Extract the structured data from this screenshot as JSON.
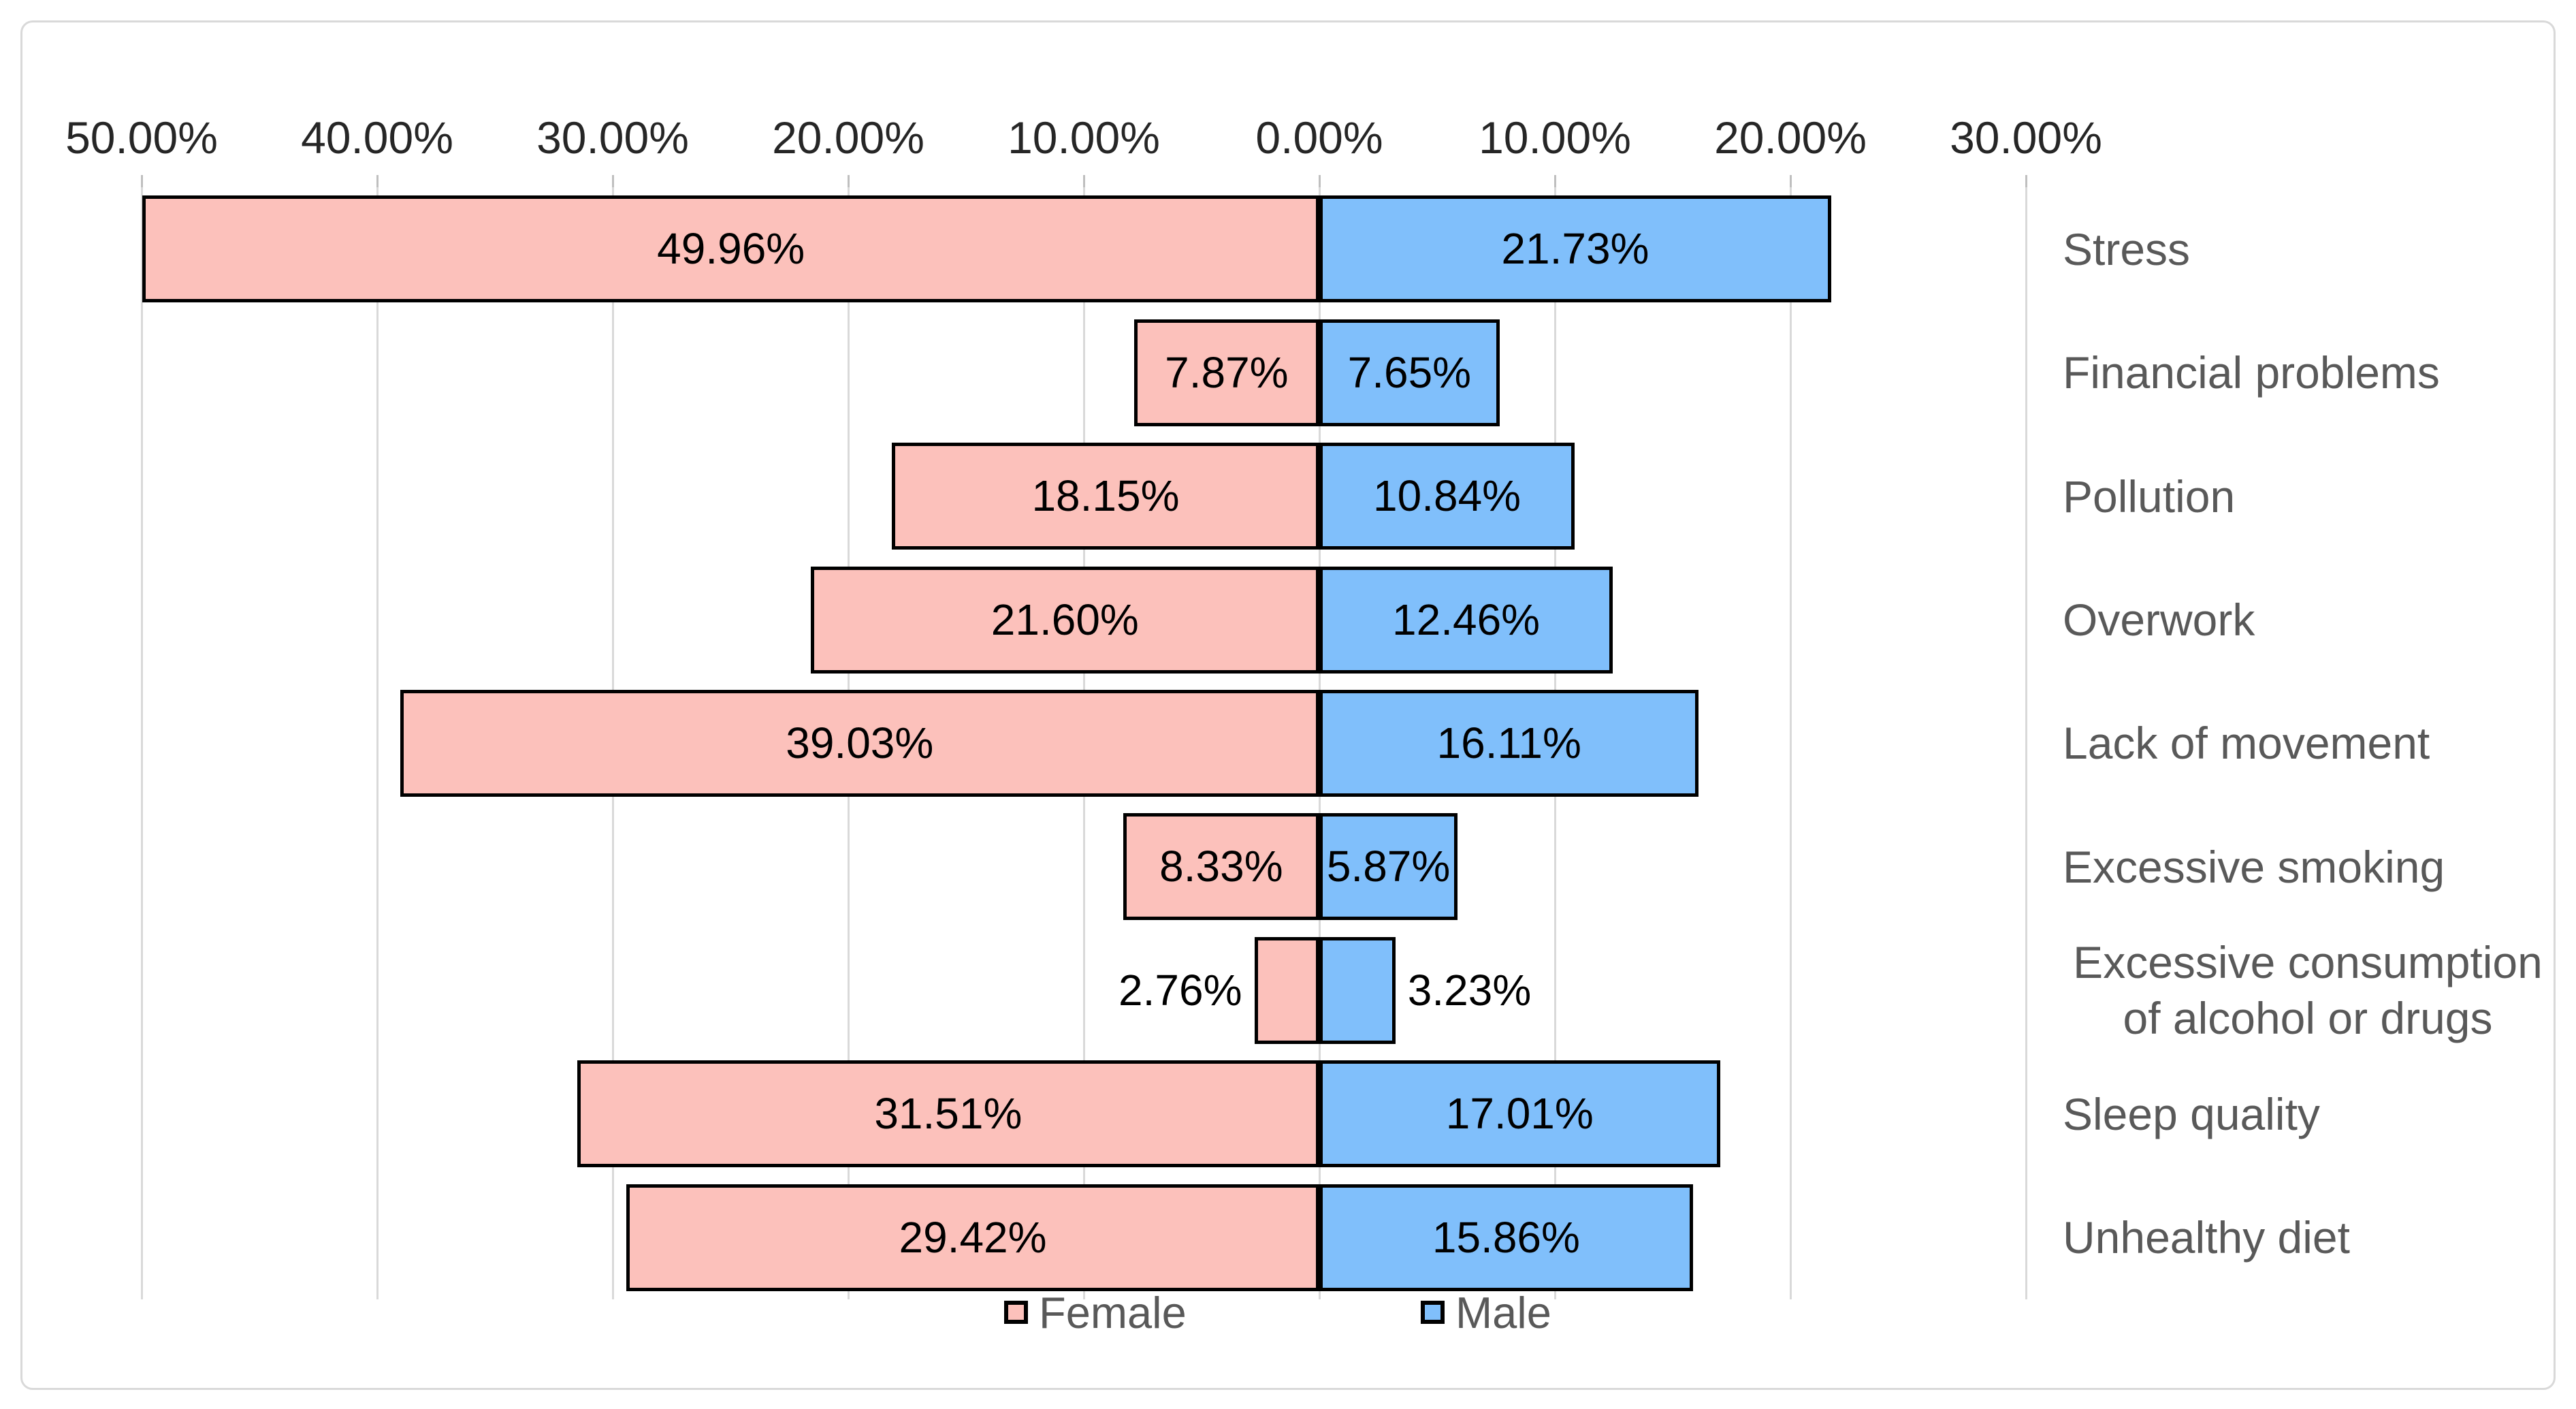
{
  "chart_data": {
    "type": "bar",
    "variant": "diverging-horizontal-butterfly",
    "title": "",
    "categories": [
      "Stress",
      "Financial problems",
      "Pollution",
      "Overwork",
      "Lack of movement",
      "Excessive smoking",
      "Excessive consumption of alcohol or drugs",
      "Sleep quality",
      "Unhealthy diet"
    ],
    "categories_display": [
      [
        "Stress"
      ],
      [
        "Financial problems"
      ],
      [
        "Pollution"
      ],
      [
        "Overwork"
      ],
      [
        "Lack of movement"
      ],
      [
        "Excessive smoking"
      ],
      [
        "Excessive consumption",
        "of alcohol or drugs"
      ],
      [
        "Sleep quality"
      ],
      [
        "Unhealthy diet"
      ]
    ],
    "series": [
      {
        "name": "Female",
        "direction": "left",
        "color": "#FCC1BB",
        "values": [
          49.96,
          7.87,
          18.15,
          21.6,
          39.03,
          8.33,
          2.76,
          31.51,
          29.42
        ],
        "display_values": [
          "49.96%",
          "7.87%",
          "18.15%",
          "21.60%",
          "39.03%",
          "8.33%",
          "2.76%",
          "31.51%",
          "29.42%"
        ]
      },
      {
        "name": "Male",
        "direction": "right",
        "color": "#80BFFB",
        "values": [
          21.73,
          7.65,
          10.84,
          12.46,
          16.11,
          5.87,
          3.23,
          17.01,
          15.86
        ],
        "display_values": [
          "21.73%",
          "7.65%",
          "10.84%",
          "12.46%",
          "16.11%",
          "5.87%",
          "3.23%",
          "17.01%",
          "15.86%"
        ]
      }
    ],
    "axis": {
      "side": "top",
      "ticks": [
        "50.00%",
        "40.00%",
        "30.00%",
        "20.00%",
        "10.00%",
        "0.00%",
        "10.00%",
        "20.00%",
        "30.00%"
      ],
      "tick_values": [
        -50,
        -40,
        -30,
        -20,
        -10,
        0,
        10,
        20,
        30
      ],
      "range": [
        -50,
        30
      ]
    },
    "grid": true,
    "legend": {
      "position": "bottom",
      "entries": [
        {
          "label": "Female",
          "color": "#FCC1BB"
        },
        {
          "label": "Male",
          "color": "#80BFFB"
        }
      ]
    },
    "colors": {
      "female_fill": "#FCC1BB",
      "male_fill": "#80BFFB",
      "bar_border": "#000000",
      "gridline": "#D9D9D9",
      "axis_text": "#262626",
      "data_label_text": "#000000",
      "category_text": "#595959",
      "frame_border": "#D9D9D9",
      "background": "#FFFFFF"
    }
  }
}
